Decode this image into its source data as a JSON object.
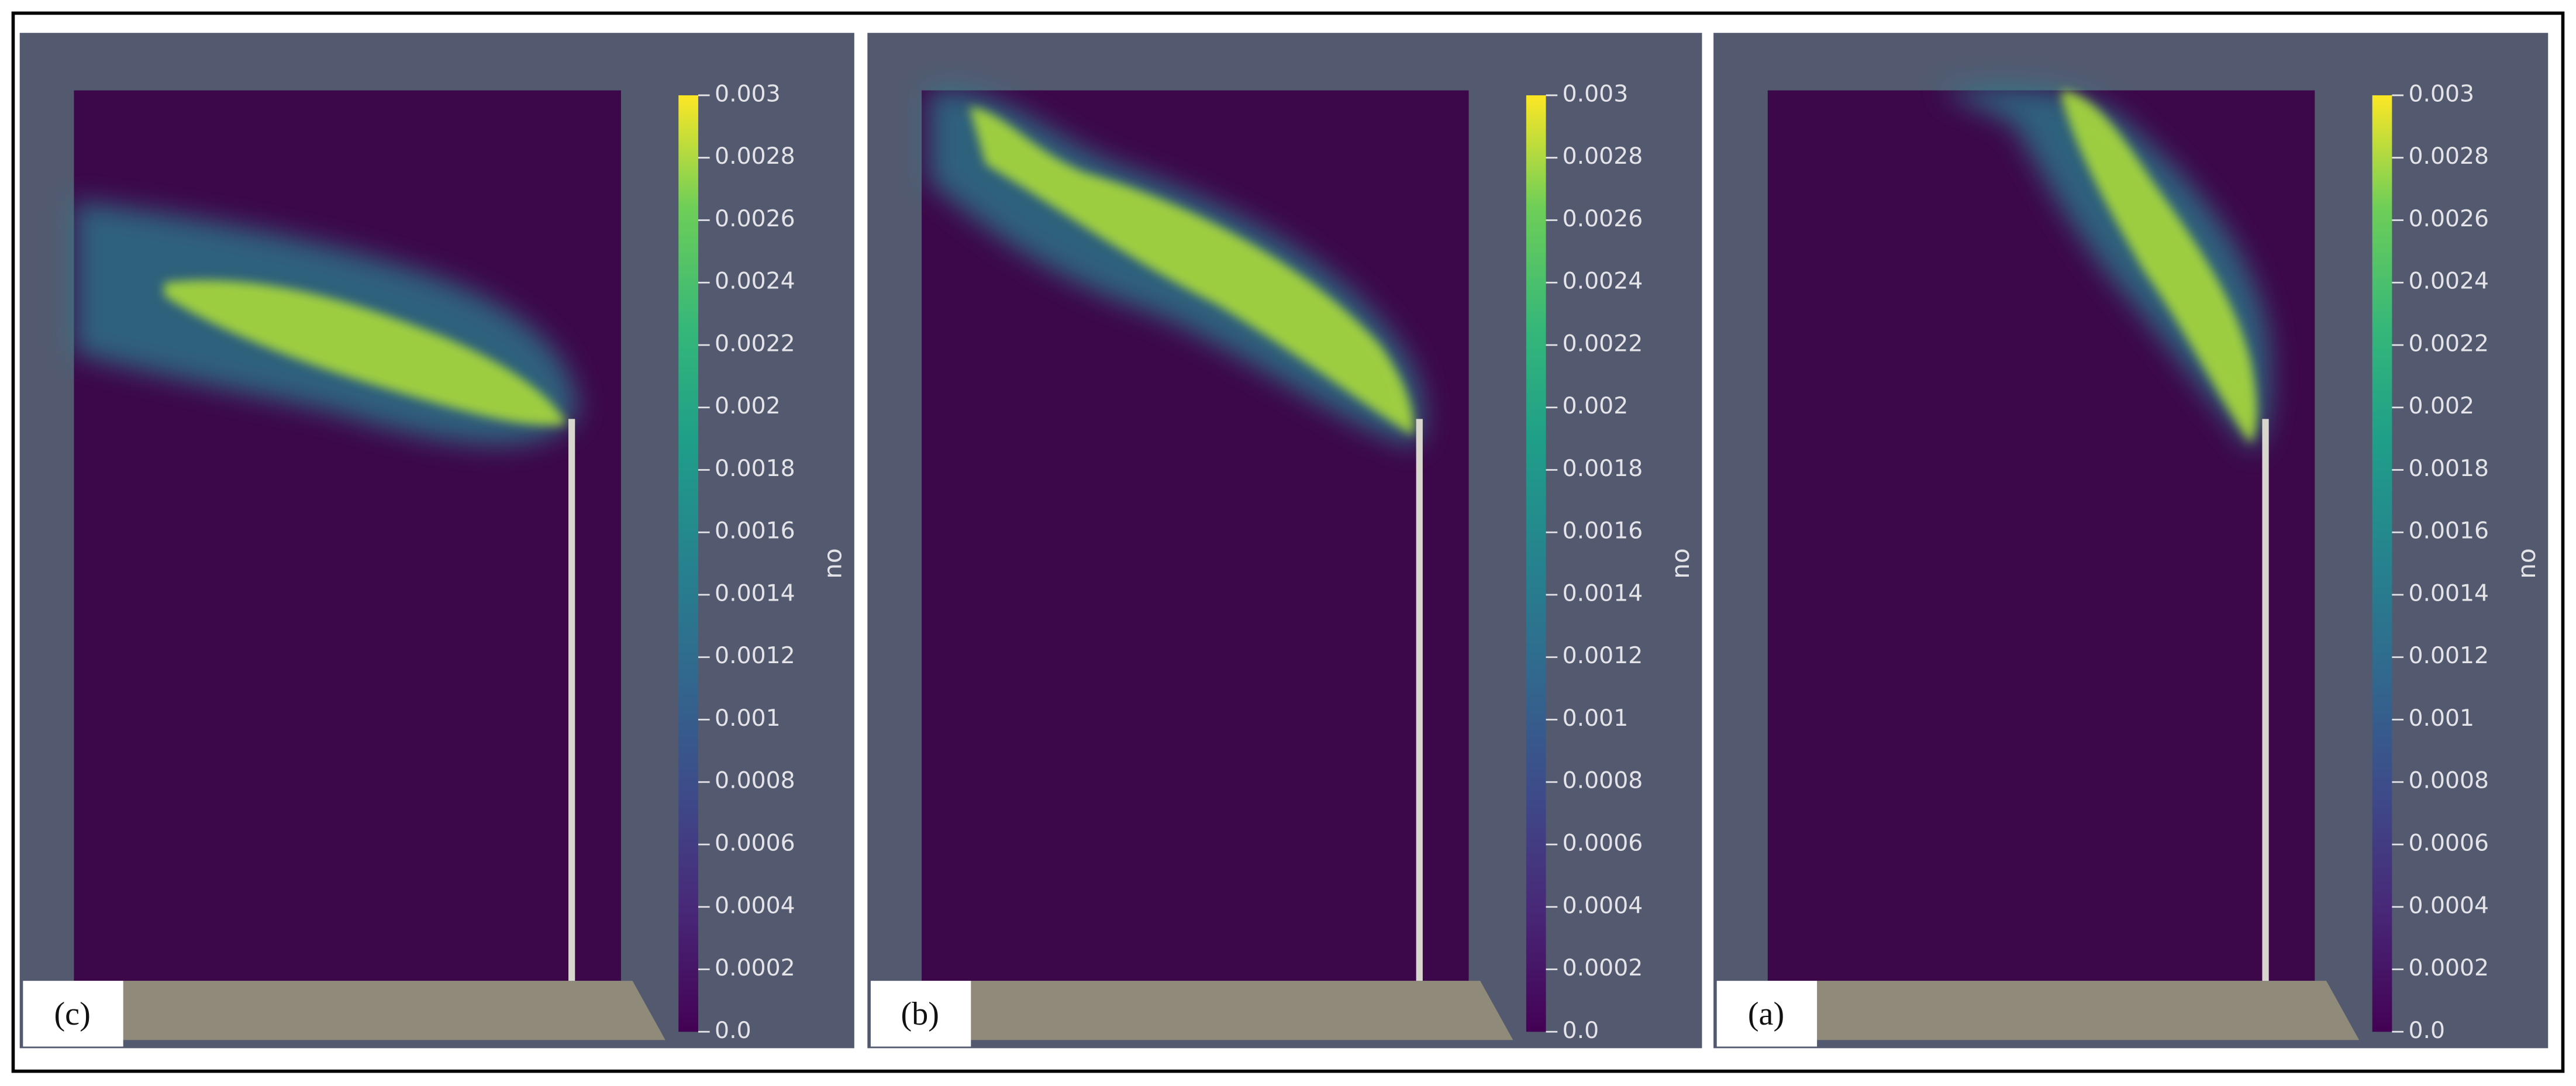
{
  "panels": [
    {
      "label": "(c)"
    },
    {
      "label": "(b)"
    },
    {
      "label": "(a)"
    }
  ],
  "colorbar": {
    "title": "no",
    "range": [
      0,
      0.003
    ],
    "ticks": [
      0.003,
      0.0028,
      0.0026,
      0.0024,
      0.0022,
      0.002,
      0.0018,
      0.0016,
      0.0014,
      0.0012,
      0.001,
      0.0008,
      0.0006,
      0.0004,
      0.0002,
      {
        "value": 0,
        "label": "0.0"
      }
    ]
  }
}
